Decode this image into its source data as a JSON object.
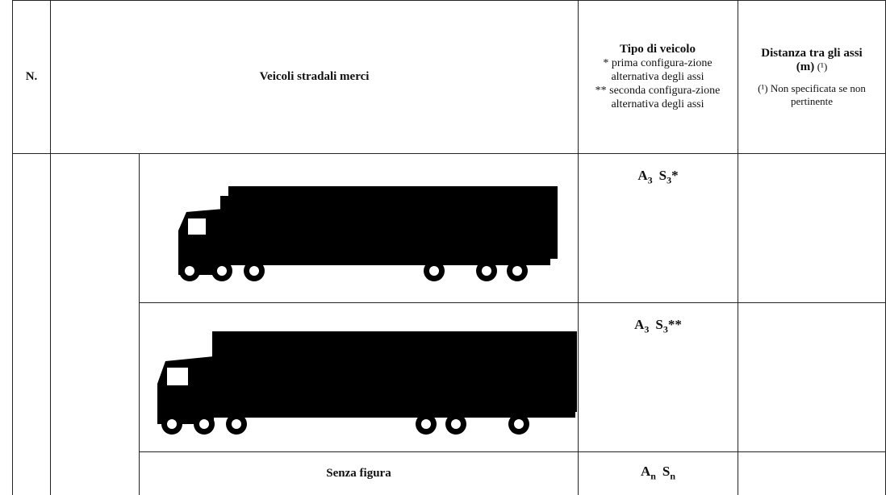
{
  "header": {
    "number": "N.",
    "vehicles": "Veicoli stradali merci",
    "type": {
      "title": "Tipo di veicolo",
      "first": "* prima configura-zione alternativa degli assi",
      "second": "** seconda configura-zione alternativa degli assi"
    },
    "distance": {
      "title": "Distanza tra gli assi",
      "unit": "(m)",
      "note_ref": "(¹)",
      "note": "(¹) Non specificata se non pertinente"
    }
  },
  "rows": [
    {
      "type": [
        {
          "base": "A",
          "sub": "3"
        },
        {
          "base": "S",
          "sub": "3",
          "suffix": "*"
        }
      ]
    },
    {
      "type": [
        {
          "base": "A",
          "sub": "3"
        },
        {
          "base": "S",
          "sub": "3",
          "suffix": "**"
        }
      ]
    },
    {
      "label": "Senza figura",
      "type": [
        {
          "base": "A",
          "sub": "n"
        },
        {
          "base": "S",
          "sub": "n"
        }
      ]
    }
  ]
}
